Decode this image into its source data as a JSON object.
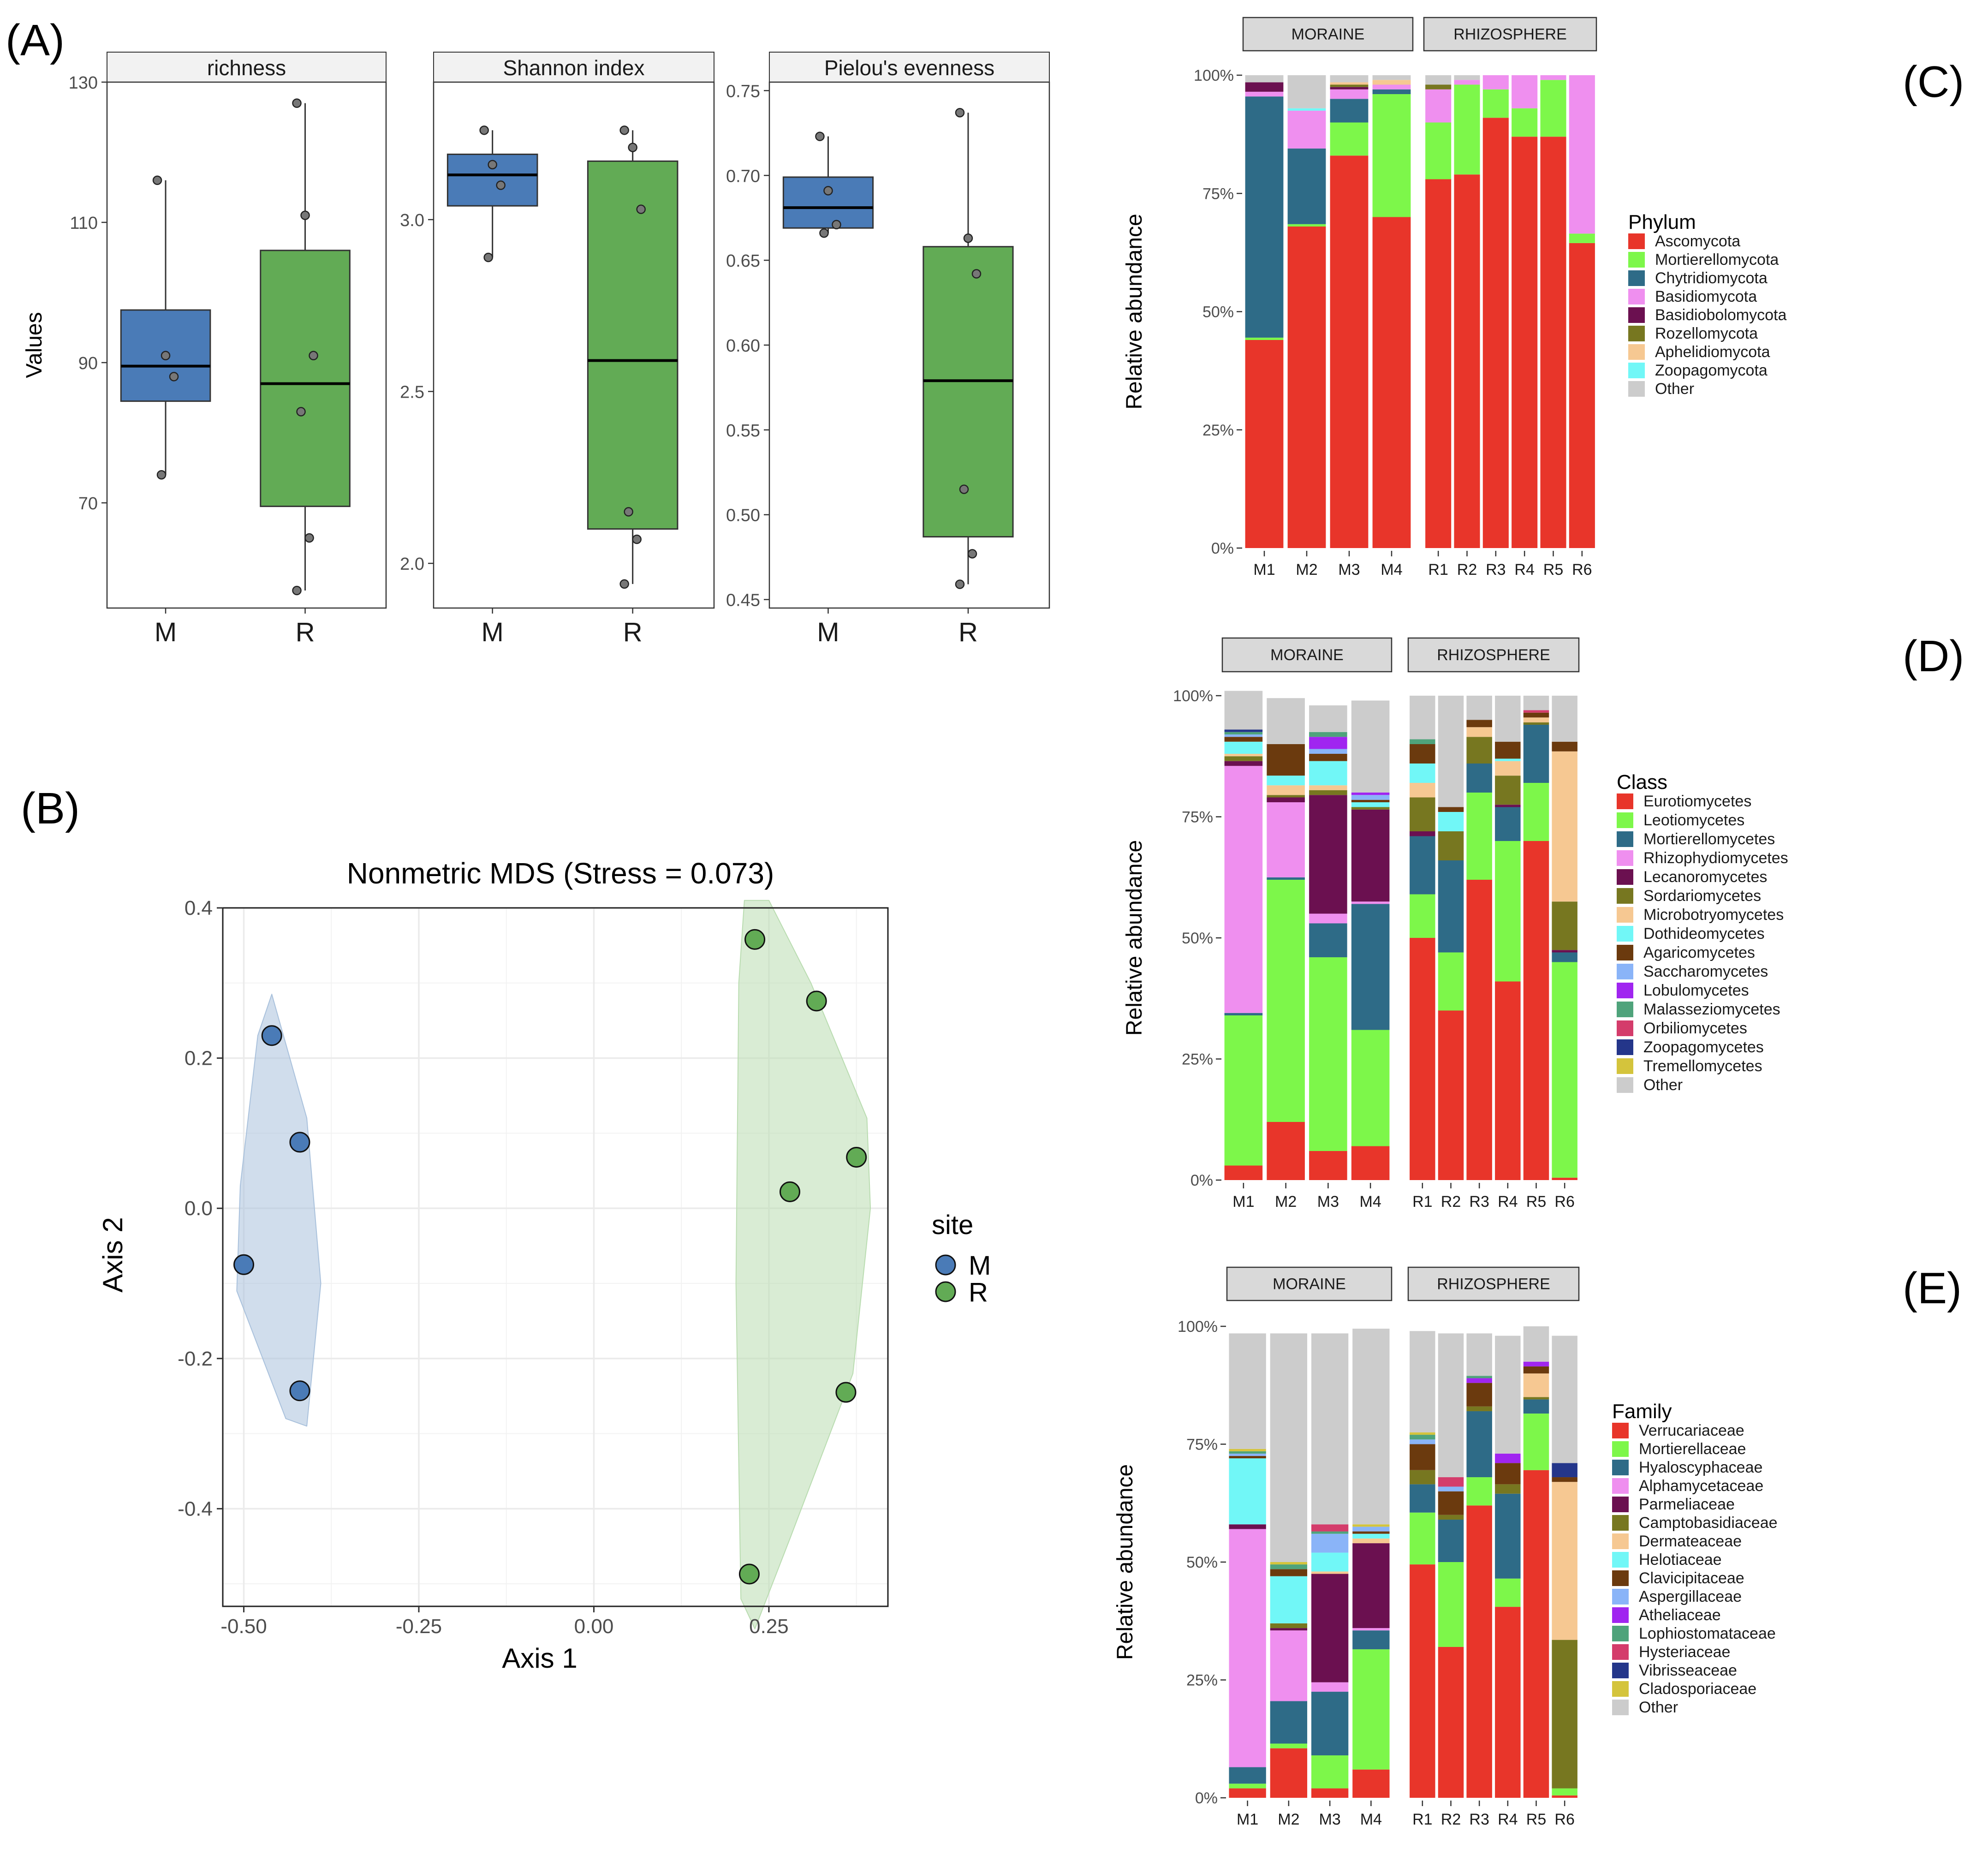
{
  "figure_labels": {
    "A": "(A)",
    "B": "(B)",
    "C": "(C)",
    "D": "(D)",
    "E": "(E)"
  },
  "colors": {
    "M": "#4a7bb7",
    "R": "#62ab55",
    "strip": "#d9d9d9",
    "grid": "#ebebeb",
    "other": "#cccccc"
  },
  "chart_data": [
    {
      "id": "A",
      "type": "boxplot",
      "ylabel": "Values",
      "categories": [
        "M",
        "R"
      ],
      "panels": [
        {
          "title": "richness",
          "ylim": [
            55,
            130
          ],
          "yticks": [
            "130",
            "110",
            "90",
            "70"
          ],
          "ytick_values": [
            130,
            110,
            90,
            70
          ],
          "boxes": [
            {
              "group": "M",
              "q1": 84.5,
              "median": 89.5,
              "q3": 97.5,
              "lo": 74,
              "hi": 116,
              "points": [
                116,
                91,
                88,
                74
              ]
            },
            {
              "group": "R",
              "q1": 69.5,
              "median": 87,
              "q3": 106,
              "lo": 57.5,
              "hi": 127,
              "points": [
                127,
                111,
                91,
                83,
                65,
                57.5
              ]
            }
          ]
        },
        {
          "title": "Shannon index",
          "ylim": [
            1.87,
            3.4
          ],
          "yticks": [
            "3.0",
            "2.5",
            "2.0"
          ],
          "ytick_values": [
            3.0,
            2.5,
            2.0
          ],
          "boxes": [
            {
              "group": "M",
              "q1": 3.04,
              "median": 3.13,
              "q3": 3.19,
              "lo": 2.89,
              "hi": 3.26,
              "points": [
                3.26,
                3.16,
                3.1,
                2.89
              ]
            },
            {
              "group": "R",
              "q1": 2.1,
              "median": 2.59,
              "q3": 3.17,
              "lo": 1.94,
              "hi": 3.26,
              "points": [
                3.26,
                3.21,
                3.03,
                2.15,
                2.07,
                1.94
              ]
            }
          ]
        },
        {
          "title": "Pielou's evenness",
          "ylim": [
            0.445,
            0.755
          ],
          "yticks": [
            "0.75",
            "0.70",
            "0.65",
            "0.60",
            "0.55",
            "0.50",
            "0.45"
          ],
          "ytick_values": [
            0.75,
            0.7,
            0.65,
            0.6,
            0.55,
            0.5,
            0.45
          ],
          "boxes": [
            {
              "group": "M",
              "q1": 0.669,
              "median": 0.681,
              "q3": 0.699,
              "lo": 0.666,
              "hi": 0.723,
              "points": [
                0.723,
                0.691,
                0.671,
                0.666
              ]
            },
            {
              "group": "R",
              "q1": 0.487,
              "median": 0.579,
              "q3": 0.658,
              "lo": 0.459,
              "hi": 0.737,
              "points": [
                0.737,
                0.663,
                0.642,
                0.515,
                0.477,
                0.459
              ]
            }
          ]
        }
      ]
    },
    {
      "id": "B",
      "type": "scatter",
      "title": "Nonmetric MDS (Stress = 0.073)",
      "xlabel": "Axis 1",
      "ylabel": "Axis 2",
      "xlim": [
        -0.53,
        0.42
      ],
      "ylim": [
        -0.53,
        0.4
      ],
      "xticks": [
        "-0.50",
        "-0.25",
        "0.00",
        "0.25"
      ],
      "xtick_values": [
        -0.5,
        -0.25,
        0.0,
        0.25
      ],
      "yticks": [
        "0.4",
        "0.2",
        "0.0",
        "-0.2",
        "-0.4"
      ],
      "ytick_values": [
        0.4,
        0.2,
        0.0,
        -0.2,
        -0.4
      ],
      "legend_title": "site",
      "series": [
        {
          "name": "M",
          "points": [
            [
              -0.46,
              0.23
            ],
            [
              -0.42,
              0.088
            ],
            [
              -0.5,
              -0.075
            ],
            [
              -0.42,
              -0.243
            ]
          ],
          "hull": [
            [
              -0.46,
              0.285
            ],
            [
              -0.41,
              0.12
            ],
            [
              -0.39,
              -0.1
            ],
            [
              -0.41,
              -0.29
            ],
            [
              -0.44,
              -0.28
            ],
            [
              -0.51,
              -0.11
            ],
            [
              -0.505,
              0.03
            ],
            [
              -0.48,
              0.23
            ]
          ]
        },
        {
          "name": "R",
          "points": [
            [
              0.23,
              0.358
            ],
            [
              0.318,
              0.276
            ],
            [
              0.375,
              0.068
            ],
            [
              0.28,
              0.022
            ],
            [
              0.36,
              -0.245
            ],
            [
              0.222,
              -0.487
            ]
          ],
          "hull": [
            [
              0.215,
              0.41
            ],
            [
              0.25,
              0.41
            ],
            [
              0.31,
              0.3
            ],
            [
              0.39,
              0.12
            ],
            [
              0.395,
              0.0
            ],
            [
              0.37,
              -0.22
            ],
            [
              0.28,
              -0.44
            ],
            [
              0.23,
              -0.56
            ],
            [
              0.21,
              -0.52
            ],
            [
              0.203,
              -0.1
            ],
            [
              0.207,
              0.3
            ]
          ]
        }
      ]
    },
    {
      "id": "C",
      "type": "stacked_bar",
      "ylabel": "Relative abundance",
      "yticks": [
        "100%",
        "75%",
        "50%",
        "25%",
        "0%"
      ],
      "facets": [
        {
          "label": "MORAINE",
          "samples": [
            "M1",
            "M2",
            "M3",
            "M4"
          ]
        },
        {
          "label": "RHIZOSPHERE",
          "samples": [
            "R1",
            "R2",
            "R3",
            "R4",
            "R5",
            "R6"
          ]
        }
      ],
      "legend_title": "Phylum",
      "legend": [
        "Ascomycota",
        "Mortierellomycota",
        "Chytridiomycota",
        "Basidiomycota",
        "Basidiobolomycota",
        "Rozellomycota",
        "Aphelidiomycota",
        "Zoopagomycota",
        "Other"
      ],
      "palette": [
        "#e8352a",
        "#7df74a",
        "#2e6b87",
        "#ef8fef",
        "#6b1050",
        "#777720",
        "#f6c892",
        "#71f7f7",
        "#cccccc"
      ],
      "values": {
        "M1": [
          0.44,
          0.005,
          0.51,
          0.01,
          0.02,
          0,
          0,
          0,
          0.015
        ],
        "M2": [
          0.68,
          0.005,
          0.16,
          0.08,
          0,
          0,
          0,
          0.005,
          0.07
        ],
        "M3": [
          0.83,
          0.07,
          0.05,
          0.02,
          0.005,
          0.005,
          0.005,
          0,
          0.015
        ],
        "M4": [
          0.7,
          0.26,
          0.01,
          0.01,
          0,
          0,
          0.01,
          0,
          0.01
        ],
        "R1": [
          0.78,
          0.12,
          0,
          0.07,
          0,
          0.01,
          0,
          0,
          0.02
        ],
        "R2": [
          0.79,
          0.19,
          0,
          0.01,
          0,
          0,
          0,
          0,
          0.01
        ],
        "R3": [
          0.91,
          0.06,
          0,
          0.03,
          0,
          0,
          0,
          0,
          0
        ],
        "R4": [
          0.87,
          0.06,
          0,
          0.07,
          0,
          0,
          0,
          0,
          0
        ],
        "R5": [
          0.87,
          0.12,
          0,
          0.01,
          0,
          0,
          0,
          0,
          0
        ],
        "R6": [
          0.645,
          0.02,
          0,
          0.335,
          0,
          0,
          0,
          0,
          0
        ]
      }
    },
    {
      "id": "D",
      "type": "stacked_bar",
      "ylabel": "Relative abundance",
      "yticks": [
        "100%",
        "75%",
        "50%",
        "25%",
        "0%"
      ],
      "facets": [
        {
          "label": "MORAINE",
          "samples": [
            "M1",
            "M2",
            "M3",
            "M4"
          ]
        },
        {
          "label": "RHIZOSPHERE",
          "samples": [
            "R1",
            "R2",
            "R3",
            "R4",
            "R5",
            "R6"
          ]
        }
      ],
      "legend_title": "Class",
      "legend": [
        "Eurotiomycetes",
        "Leotiomycetes",
        "Mortierellomycetes",
        "Rhizophydiomycetes",
        "Lecanoromycetes",
        "Sordariomycetes",
        "Microbotryomycetes",
        "Dothideomycetes",
        "Agaricomycetes",
        "Saccharomycetes",
        "Lobulomycetes",
        "Malasseziomycetes",
        "Orbiliomycetes",
        "Zoopagomycetes",
        "Tremellomycetes",
        "Other"
      ],
      "palette": [
        "#e8352a",
        "#7df74a",
        "#2e6b87",
        "#ef8fef",
        "#6b1050",
        "#777720",
        "#f6c892",
        "#71f7f7",
        "#6b3a0e",
        "#8ab4f8",
        "#a025f0",
        "#4fa37b",
        "#d43c6b",
        "#24368a",
        "#d4c43c",
        "#cccccc"
      ],
      "values": {
        "M1": [
          0.03,
          0.31,
          0.005,
          0.51,
          0.01,
          0.01,
          0.005,
          0.025,
          0.01,
          0.005,
          0,
          0.005,
          0,
          0.005,
          0,
          0.08
        ],
        "M2": [
          0.12,
          0.5,
          0.005,
          0.155,
          0.01,
          0.005,
          0.02,
          0.02,
          0.065,
          0,
          0,
          0,
          0,
          0,
          0,
          0.095
        ],
        "M3": [
          0.06,
          0.4,
          0.07,
          0.02,
          0.245,
          0.01,
          0.01,
          0.05,
          0.015,
          0.01,
          0.025,
          0.01,
          0,
          0,
          0,
          0.055
        ],
        "M4": [
          0.07,
          0.24,
          0.26,
          0.005,
          0.19,
          0.005,
          0,
          0.01,
          0.005,
          0.01,
          0.005,
          0,
          0,
          0,
          0,
          0.19
        ],
        "R1": [
          0.5,
          0.09,
          0.12,
          0,
          0.01,
          0.07,
          0.03,
          0.04,
          0.04,
          0,
          0,
          0.01,
          0,
          0,
          0,
          0.09
        ],
        "R2": [
          0.35,
          0.12,
          0.19,
          0,
          0,
          0.06,
          0,
          0.04,
          0.01,
          0,
          0,
          0,
          0,
          0,
          0,
          0.23
        ],
        "R3": [
          0.62,
          0.18,
          0.06,
          0,
          0,
          0.055,
          0.02,
          0,
          0.015,
          0,
          0,
          0,
          0,
          0,
          0,
          0.05
        ],
        "R4": [
          0.41,
          0.29,
          0.07,
          0,
          0.005,
          0.06,
          0.03,
          0.005,
          0.035,
          0,
          0,
          0,
          0,
          0,
          0,
          0.095
        ],
        "R5": [
          0.7,
          0.12,
          0.12,
          0,
          0,
          0.005,
          0.01,
          0,
          0.01,
          0,
          0,
          0,
          0.005,
          0,
          0,
          0.03
        ],
        "R6": [
          0.005,
          0.445,
          0.02,
          0,
          0.005,
          0.1,
          0.31,
          0,
          0.02,
          0,
          0,
          0,
          0,
          0,
          0,
          0.095
        ]
      }
    },
    {
      "id": "E",
      "type": "stacked_bar",
      "ylabel": "Relative abundance",
      "yticks": [
        "100%",
        "75%",
        "50%",
        "25%",
        "0%"
      ],
      "facets": [
        {
          "label": "MORAINE",
          "samples": [
            "M1",
            "M2",
            "M3",
            "M4"
          ]
        },
        {
          "label": "RHIZOSPHERE",
          "samples": [
            "R1",
            "R2",
            "R3",
            "R4",
            "R5",
            "R6"
          ]
        }
      ],
      "legend_title": "Family",
      "legend": [
        "Verrucariaceae",
        "Mortierellaceae",
        "Hyaloscyphaceae",
        "Alphamycetaceae",
        "Parmeliaceae",
        "Camptobasidiaceae",
        "Dermateaceae",
        "Helotiaceae",
        "Clavicipitaceae",
        "Aspergillaceae",
        "Atheliaceae",
        "Lophiostomataceae",
        "Hysteriaceae",
        "Vibrisseaceae",
        "Cladosporiaceae",
        "Other"
      ],
      "palette": [
        "#e8352a",
        "#7df74a",
        "#2e6b87",
        "#ef8fef",
        "#6b1050",
        "#777720",
        "#f6c892",
        "#71f7f7",
        "#6b3a0e",
        "#8ab4f8",
        "#a025f0",
        "#4fa37b",
        "#d43c6b",
        "#24368a",
        "#d4c43c",
        "#cccccc"
      ],
      "values": {
        "M1": [
          0.02,
          0.01,
          0.035,
          0.505,
          0.01,
          0,
          0,
          0.14,
          0.005,
          0.005,
          0,
          0.005,
          0,
          0,
          0.005,
          0.245
        ],
        "M2": [
          0.105,
          0.01,
          0.09,
          0.15,
          0.005,
          0.01,
          0,
          0.1,
          0.015,
          0,
          0,
          0.01,
          0,
          0,
          0.005,
          0.485
        ],
        "M3": [
          0.02,
          0.07,
          0.135,
          0.02,
          0.23,
          0,
          0.005,
          0.04,
          0,
          0.04,
          0,
          0.005,
          0.015,
          0,
          0,
          0.405
        ],
        "M4": [
          0.06,
          0.255,
          0.04,
          0.005,
          0.18,
          0,
          0.01,
          0.01,
          0.005,
          0.01,
          0,
          0,
          0,
          0,
          0.005,
          0.415
        ],
        "R1": [
          0.495,
          0.11,
          0.06,
          0,
          0,
          0.03,
          0,
          0,
          0.055,
          0.01,
          0,
          0.01,
          0,
          0,
          0.005,
          0.215
        ],
        "R2": [
          0.32,
          0.18,
          0.09,
          0,
          0,
          0.01,
          0,
          0,
          0.05,
          0.01,
          0,
          0,
          0.02,
          0,
          0,
          0.305
        ],
        "R3": [
          0.62,
          0.06,
          0.14,
          0,
          0,
          0.01,
          0,
          0,
          0.05,
          0,
          0.01,
          0.005,
          0,
          0,
          0,
          0.09
        ],
        "R4": [
          0.405,
          0.06,
          0.18,
          0,
          0,
          0.02,
          0,
          0,
          0.045,
          0,
          0.02,
          0,
          0,
          0,
          0,
          0.25
        ],
        "R5": [
          0.695,
          0.12,
          0.03,
          0,
          0,
          0.005,
          0.05,
          0,
          0.015,
          0,
          0.01,
          0,
          0,
          0,
          0,
          0.075
        ],
        "R6": [
          0.005,
          0.015,
          0,
          0,
          0,
          0.315,
          0.335,
          0,
          0.01,
          0,
          0,
          0,
          0,
          0.03,
          0,
          0.27
        ]
      }
    }
  ]
}
